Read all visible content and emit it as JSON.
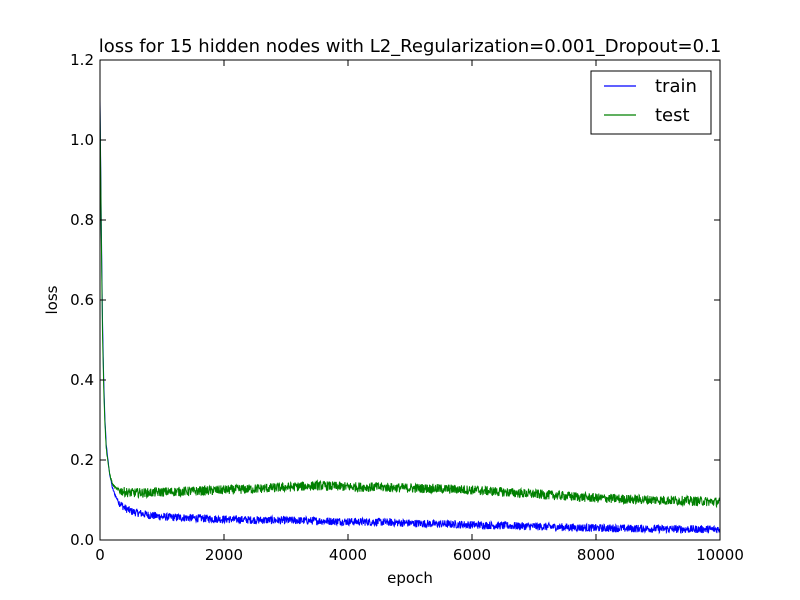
{
  "chart_data": {
    "type": "line",
    "title": "loss for 15 hidden nodes with L2_Regularization=0.001_Dropout=0.1",
    "xlabel": "epoch",
    "ylabel": "loss",
    "xlim": [
      0,
      10000
    ],
    "ylim": [
      0.0,
      1.2
    ],
    "xticks": [
      0,
      2000,
      4000,
      6000,
      8000,
      10000
    ],
    "xtick_labels": [
      "0",
      "2000",
      "4000",
      "6000",
      "8000",
      "10000"
    ],
    "yticks": [
      0.0,
      0.2,
      0.4,
      0.6,
      0.8,
      1.0,
      1.2
    ],
    "ytick_labels": [
      "0.0",
      "0.2",
      "0.4",
      "0.6",
      "0.8",
      "1.0",
      "1.2"
    ],
    "grid": false,
    "legend_position": "top-right",
    "series": [
      {
        "name": "train",
        "color": "#0000ff",
        "x": [
          0,
          20,
          40,
          60,
          80,
          100,
          150,
          200,
          250,
          300,
          400,
          500,
          600,
          800,
          1000,
          1500,
          2000,
          2500,
          3000,
          3500,
          4000,
          4500,
          5000,
          5500,
          6000,
          6500,
          7000,
          7500,
          8000,
          8500,
          9000,
          9500,
          10000
        ],
        "y": [
          1.1,
          0.8,
          0.55,
          0.4,
          0.3,
          0.24,
          0.17,
          0.13,
          0.11,
          0.095,
          0.08,
          0.072,
          0.068,
          0.062,
          0.058,
          0.055,
          0.052,
          0.05,
          0.049,
          0.048,
          0.046,
          0.045,
          0.042,
          0.04,
          0.038,
          0.036,
          0.034,
          0.032,
          0.03,
          0.029,
          0.028,
          0.027,
          0.027
        ],
        "noise": 0.01
      },
      {
        "name": "test",
        "color": "#008000",
        "x": [
          0,
          20,
          40,
          60,
          80,
          100,
          150,
          200,
          250,
          300,
          400,
          500,
          600,
          800,
          1000,
          1500,
          2000,
          2500,
          3000,
          3500,
          4000,
          4500,
          5000,
          5500,
          6000,
          6500,
          7000,
          7500,
          8000,
          8500,
          9000,
          9500,
          10000
        ],
        "y": [
          1.09,
          0.78,
          0.52,
          0.38,
          0.29,
          0.23,
          0.17,
          0.14,
          0.13,
          0.125,
          0.12,
          0.118,
          0.118,
          0.118,
          0.12,
          0.122,
          0.125,
          0.128,
          0.132,
          0.136,
          0.133,
          0.132,
          0.13,
          0.128,
          0.125,
          0.12,
          0.115,
          0.11,
          0.105,
          0.102,
          0.1,
          0.098,
          0.095
        ],
        "noise": 0.012
      }
    ]
  }
}
